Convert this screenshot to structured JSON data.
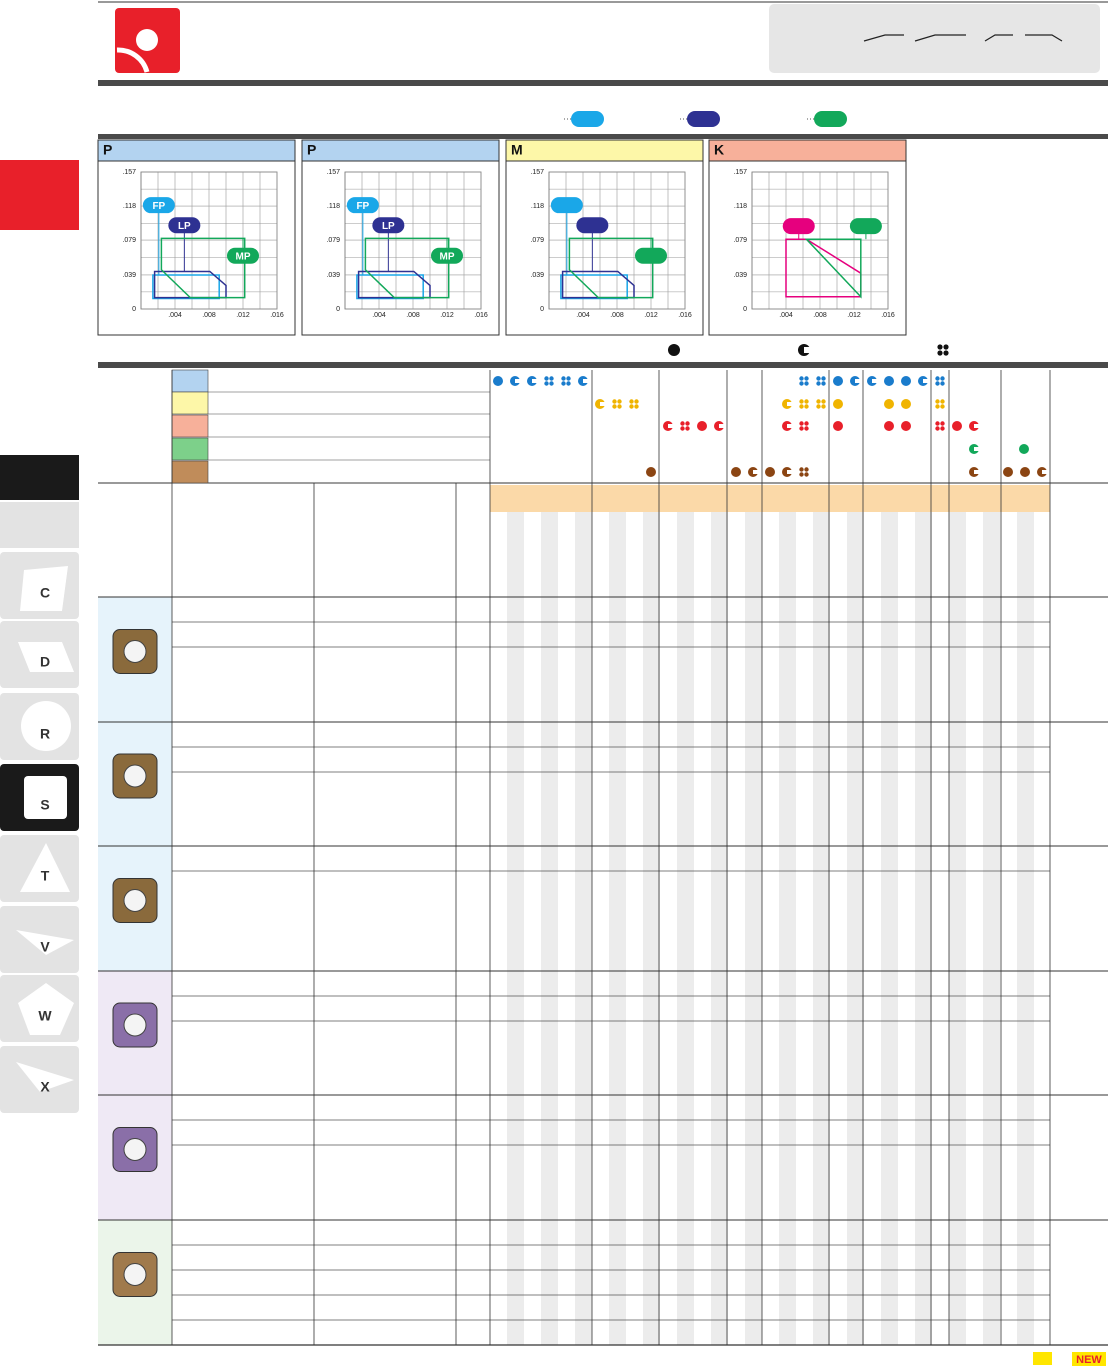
{
  "charts": [
    {
      "title": "P",
      "header_color": "#b3d3f0",
      "xlim": [
        0,
        0.016
      ],
      "ylim": [
        0,
        0.157
      ],
      "xticks": [
        {
          "value": 0.004,
          "label": ".004"
        },
        {
          "value": 0.008,
          "label": ".008"
        },
        {
          "value": 0.012,
          "label": ".012"
        },
        {
          "value": 0.016,
          "label": ".016"
        }
      ],
      "yticks": [
        0,
        {
          "value": 0.039,
          "label": ".039"
        },
        {
          "value": 0.079,
          "label": ".079"
        },
        {
          "value": 0.118,
          "label": ".118"
        },
        {
          "value": 0.157,
          "label": ".157"
        }
      ],
      "regions": [
        {
          "label": "FP",
          "color": "#1aa7e8",
          "points": [
            [
              0.0014,
              0.012
            ],
            [
              0.0092,
              0.012
            ],
            [
              0.0092,
              0.039
            ],
            [
              0.0014,
              0.039
            ]
          ],
          "label_at": [
            0.0021,
            0.119
          ]
        },
        {
          "label": "LP",
          "color": "#2e3192",
          "points": [
            [
              0.0016,
              0.013
            ],
            [
              0.01,
              0.013
            ],
            [
              0.01,
              0.027
            ],
            [
              0.0081,
              0.043
            ],
            [
              0.0016,
              0.043
            ]
          ],
          "label_at": [
            0.0051,
            0.096
          ]
        },
        {
          "label": "MP",
          "color": "#12a85a",
          "points": [
            [
              0.0024,
              0.081
            ],
            [
              0.0122,
              0.081
            ],
            [
              0.0122,
              0.013
            ],
            [
              0.0058,
              0.013
            ],
            [
              0.0024,
              0.045
            ]
          ],
          "label_at": [
            0.012,
            0.061
          ]
        }
      ]
    },
    {
      "title": "P",
      "header_color": "#b3d3f0",
      "xlim": [
        0,
        0.016
      ],
      "ylim": [
        0,
        0.157
      ],
      "xticks": [
        {
          "value": 0.004,
          "label": ".004"
        },
        {
          "value": 0.008,
          "label": ".008"
        },
        {
          "value": 0.012,
          "label": ".012"
        },
        {
          "value": 0.016,
          "label": ".016"
        }
      ],
      "yticks": [
        0,
        {
          "value": 0.039,
          "label": ".039"
        },
        {
          "value": 0.079,
          "label": ".079"
        },
        {
          "value": 0.118,
          "label": ".118"
        },
        {
          "value": 0.157,
          "label": ".157"
        }
      ],
      "regions": [
        {
          "label": "FP",
          "color": "#1aa7e8",
          "points": [
            [
              0.0014,
              0.012
            ],
            [
              0.0092,
              0.012
            ],
            [
              0.0092,
              0.039
            ],
            [
              0.0014,
              0.039
            ]
          ],
          "label_at": [
            0.0021,
            0.119
          ]
        },
        {
          "label": "LP",
          "color": "#2e3192",
          "points": [
            [
              0.0016,
              0.013
            ],
            [
              0.01,
              0.013
            ],
            [
              0.01,
              0.027
            ],
            [
              0.0081,
              0.043
            ],
            [
              0.0016,
              0.043
            ]
          ],
          "label_at": [
            0.0051,
            0.096
          ]
        },
        {
          "label": "MP",
          "color": "#12a85a",
          "points": [
            [
              0.0024,
              0.081
            ],
            [
              0.0122,
              0.081
            ],
            [
              0.0122,
              0.013
            ],
            [
              0.0058,
              0.013
            ],
            [
              0.0024,
              0.045
            ]
          ],
          "label_at": [
            0.012,
            0.061
          ]
        }
      ]
    },
    {
      "title": "M",
      "header_color": "#fdf7a8",
      "xlim": [
        0,
        0.016
      ],
      "ylim": [
        0,
        0.157
      ],
      "xticks": [
        {
          "value": 0.004,
          "label": ".004"
        },
        {
          "value": 0.008,
          "label": ".008"
        },
        {
          "value": 0.012,
          "label": ".012"
        },
        {
          "value": 0.016,
          "label": ".016"
        }
      ],
      "yticks": [
        0,
        {
          "value": 0.039,
          "label": ".039"
        },
        {
          "value": 0.079,
          "label": ".079"
        },
        {
          "value": 0.118,
          "label": ".118"
        },
        {
          "value": 0.157,
          "label": ".157"
        }
      ],
      "regions": [
        {
          "color": "#1aa7e8",
          "points": [
            [
              0.0014,
              0.012
            ],
            [
              0.0092,
              0.012
            ],
            [
              0.0092,
              0.039
            ],
            [
              0.0014,
              0.039
            ]
          ],
          "label_at": [
            0.0021,
            0.119
          ]
        },
        {
          "color": "#2e3192",
          "points": [
            [
              0.0016,
              0.013
            ],
            [
              0.01,
              0.013
            ],
            [
              0.01,
              0.027
            ],
            [
              0.0081,
              0.043
            ],
            [
              0.0016,
              0.043
            ]
          ],
          "label_at": [
            0.0051,
            0.096
          ]
        },
        {
          "color": "#12a85a",
          "points": [
            [
              0.0024,
              0.081
            ],
            [
              0.0122,
              0.081
            ],
            [
              0.0122,
              0.013
            ],
            [
              0.0058,
              0.013
            ],
            [
              0.0024,
              0.045
            ]
          ],
          "label_at": [
            0.012,
            0.061
          ]
        }
      ]
    },
    {
      "title": "K",
      "header_color": "#f7b09a",
      "xlim": [
        0,
        0.016
      ],
      "ylim": [
        0,
        0.157
      ],
      "xticks": [
        {
          "value": 0.004,
          "label": ".004"
        },
        {
          "value": 0.008,
          "label": ".008"
        },
        {
          "value": 0.012,
          "label": ".012"
        },
        {
          "value": 0.016,
          "label": ".016"
        }
      ],
      "yticks": [
        0,
        {
          "value": 0.039,
          "label": ".039"
        },
        {
          "value": 0.079,
          "label": ".079"
        },
        {
          "value": 0.118,
          "label": ".118"
        },
        {
          "value": 0.157,
          "label": ".157"
        }
      ],
      "regions": [
        {
          "color": "#e6007e",
          "points": [
            [
              0.004,
              0.08
            ],
            [
              0.0064,
              0.08
            ],
            [
              0.0128,
              0.041
            ],
            [
              0.0128,
              0.014
            ],
            [
              0.004,
              0.014
            ]
          ],
          "label_at": [
            0.0055,
            0.095
          ]
        },
        {
          "color": "#12a85a",
          "points": [
            [
              0.0064,
              0.08
            ],
            [
              0.0128,
              0.08
            ],
            [
              0.0128,
              0.014
            ]
          ],
          "label_at": [
            0.0134,
            0.095
          ]
        }
      ]
    }
  ],
  "sidebar": {
    "tabs": [
      "C",
      "D",
      "R",
      "S",
      "T",
      "V",
      "W",
      "X"
    ]
  },
  "footer": {
    "badge": "NEW"
  }
}
